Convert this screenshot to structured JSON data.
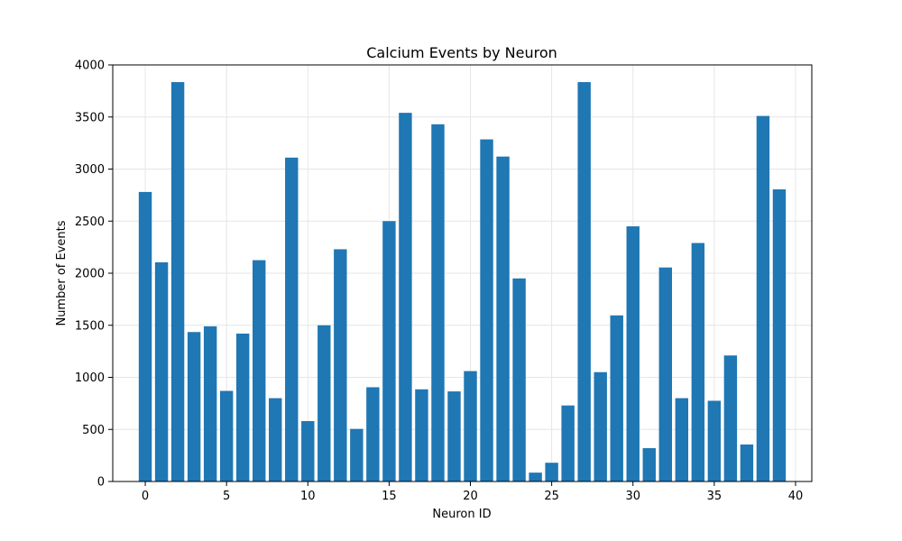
{
  "chart_data": {
    "type": "bar",
    "title": "Calcium Events by Neuron",
    "xlabel": "Neuron ID",
    "ylabel": "Number of Events",
    "x": [
      0,
      1,
      2,
      3,
      4,
      5,
      6,
      7,
      8,
      9,
      10,
      11,
      12,
      13,
      14,
      15,
      16,
      17,
      18,
      19,
      20,
      21,
      22,
      23,
      24,
      25,
      26,
      27,
      28,
      29,
      30,
      31,
      32,
      33,
      34,
      35,
      36,
      37,
      38,
      39
    ],
    "values": [
      2780,
      2105,
      3835,
      1435,
      1490,
      870,
      1420,
      2125,
      800,
      3110,
      580,
      1500,
      2230,
      505,
      905,
      2500,
      3540,
      885,
      3430,
      865,
      1060,
      3285,
      3120,
      1950,
      85,
      180,
      730,
      3835,
      1050,
      1595,
      2450,
      320,
      2055,
      800,
      2290,
      775,
      1210,
      355,
      3510,
      2805
    ],
    "xlim": [
      -2,
      41
    ],
    "ylim": [
      0,
      4000
    ],
    "xticks": [
      0,
      5,
      10,
      15,
      20,
      25,
      30,
      35,
      40
    ],
    "xtick_labels": [
      "0",
      "5",
      "10",
      "15",
      "20",
      "25",
      "30",
      "35",
      "40"
    ],
    "yticks": [
      0,
      500,
      1000,
      1500,
      2000,
      2500,
      3000,
      3500,
      4000
    ],
    "ytick_labels": [
      "0",
      "500",
      "1000",
      "1500",
      "2000",
      "2500",
      "3000",
      "3500",
      "4000"
    ],
    "grid": true,
    "legend": "none",
    "colors": {
      "bar": "#1f77b4",
      "grid": "#e6e6e6",
      "axis": "#000000"
    }
  }
}
